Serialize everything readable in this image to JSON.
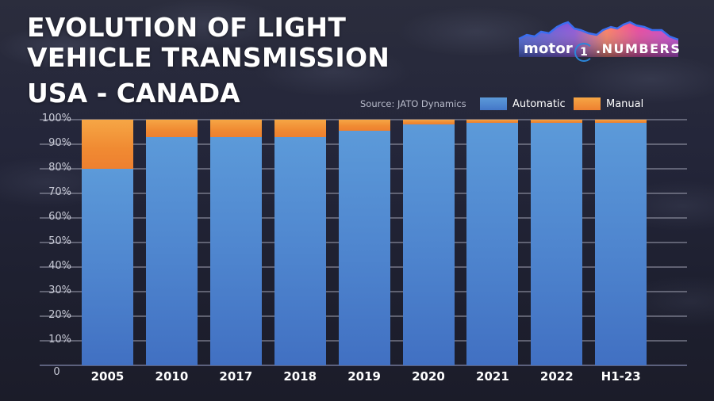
{
  "header": {
    "title_lines": [
      "EVOLUTION OF LIGHT",
      "VEHICLE TRANSMISSION"
    ],
    "subtitle": "USA - CANADA",
    "source": "Source: JATO Dynamics"
  },
  "logo": {
    "brand": "motor",
    "brand_number": "1",
    "suffix": ".NUMBERS"
  },
  "colors": {
    "automatic": "#4f86cf",
    "manual": "#f08a32",
    "background": "#1f2130"
  },
  "chart_data": {
    "type": "bar",
    "stacked": true,
    "title": "Evolution of Light Vehicle Transmission — USA - Canada",
    "xlabel": "",
    "ylabel": "",
    "ylim": [
      0,
      100
    ],
    "yticks": [
      "0",
      "10%",
      "20%",
      "30%",
      "40%",
      "50%",
      "60%",
      "70%",
      "80%",
      "90%",
      "100%"
    ],
    "grid": true,
    "legend": {
      "placement": "top-right",
      "entries": [
        "Automatic",
        "Manual"
      ]
    },
    "categories": [
      "2005",
      "2010",
      "2017",
      "2018",
      "2019",
      "2020",
      "2021",
      "2022",
      "H1-23"
    ],
    "series": [
      {
        "name": "Automatic",
        "values": [
          80,
          93,
          93,
          93,
          95.5,
          98,
          98.7,
          98.7,
          98.7
        ]
      },
      {
        "name": "Manual",
        "values": [
          20,
          7,
          7,
          7,
          4.5,
          2,
          1.3,
          1.3,
          1.3
        ]
      }
    ]
  }
}
